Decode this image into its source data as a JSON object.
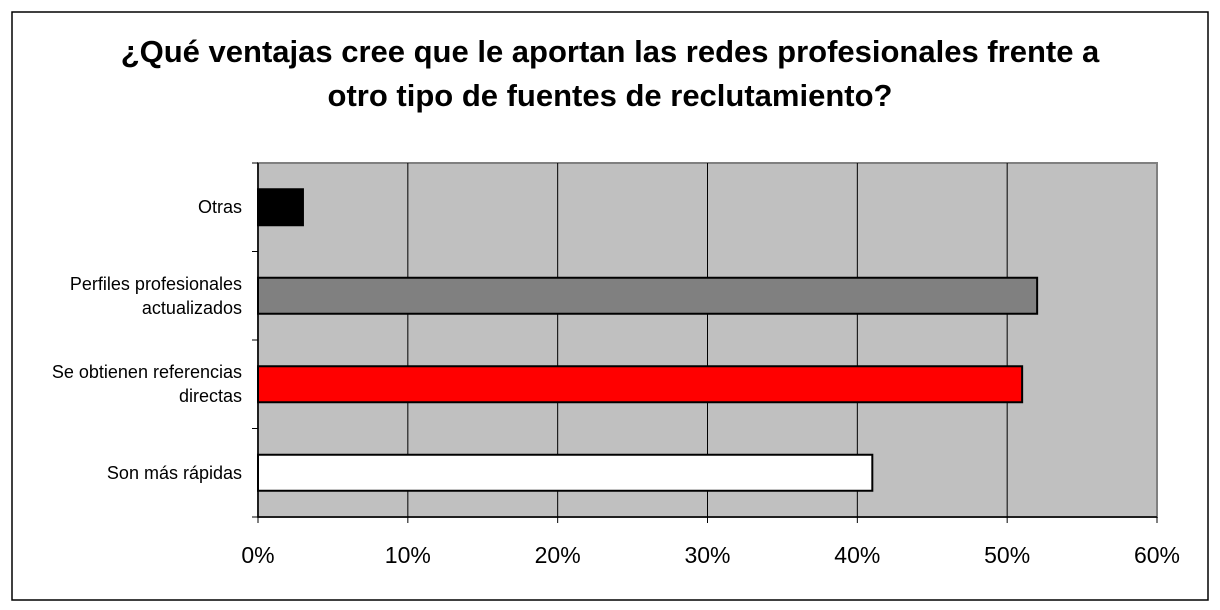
{
  "chart_data": {
    "type": "barh",
    "title": "¿Qué ventajas cree que le aportan las redes profesionales frente a otro tipo de fuentes de reclutamiento?",
    "categories": [
      "Otras",
      "Perfiles profesionales actualizados",
      "Se obtienen referencias directas",
      "Son más rápidas"
    ],
    "values": [
      3,
      52,
      51,
      41
    ],
    "colors": [
      "#000000",
      "#808080",
      "#ff0000",
      "#ffffff"
    ],
    "xlim": [
      0,
      60
    ],
    "xticks": [
      {
        "value": 0,
        "label": "0%"
      },
      {
        "value": 10,
        "label": "10%"
      },
      {
        "value": 20,
        "label": "20%"
      },
      {
        "value": 30,
        "label": "30%"
      },
      {
        "value": 40,
        "label": "40%"
      },
      {
        "value": 50,
        "label": "50%"
      },
      {
        "value": 60,
        "label": "60%"
      }
    ],
    "grid": true
  }
}
